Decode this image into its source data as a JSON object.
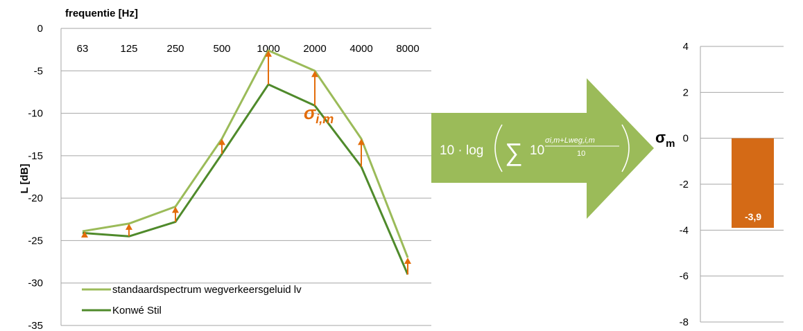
{
  "chart_data": [
    {
      "type": "line",
      "x_title": "frequentie [Hz]",
      "ylabel": "L [dB]",
      "categories": [
        "63",
        "125",
        "250",
        "500",
        "1000",
        "2000",
        "4000",
        "8000"
      ],
      "ylim": [
        -35,
        0
      ],
      "yticks": [
        0,
        -5,
        -10,
        -15,
        -20,
        -25,
        -30,
        -35
      ],
      "ytick_labels": [
        "0",
        "-5",
        "-10",
        "-15",
        "-20",
        "-25",
        "-30",
        "-35"
      ],
      "grid": true,
      "legend_position": "bottom-left",
      "series": [
        {
          "name": "standaardspectrum wegverkeersgeluid lv",
          "color": "#9bbb59",
          "values": [
            -23.9,
            -23.0,
            -21.0,
            -13.0,
            -2.6,
            -5.0,
            -13.0,
            -27.0
          ]
        },
        {
          "name": "Konwé Stil",
          "color": "#4f8a2b",
          "values": [
            -24.1,
            -24.5,
            -22.8,
            -14.8,
            -6.6,
            -9.1,
            -16.3,
            -29.0
          ]
        }
      ],
      "deviation_arrows": {
        "color": "#e36c0a",
        "label": "σ",
        "label_subscript": "i,m",
        "deltas": [
          0.2,
          1.5,
          1.8,
          1.8,
          4.0,
          4.1,
          3.3,
          2.0
        ]
      }
    },
    {
      "type": "bar",
      "ylabel": "σ",
      "ylabel_subscript": "m",
      "categories": [
        ""
      ],
      "values": [
        -3.9
      ],
      "value_labels": [
        "-3,9"
      ],
      "color": "#d46a16",
      "ylim": [
        -8,
        4
      ],
      "yticks": [
        4,
        2,
        0,
        -2,
        -4,
        -6,
        -8
      ],
      "ytick_labels": [
        "4",
        "2",
        "0",
        "-2",
        "-4",
        "-6",
        "-8"
      ],
      "grid": true
    }
  ],
  "arrow": {
    "color": "#9bbb59",
    "formula": {
      "prefix": "10 · log",
      "sum": "∑",
      "base": "10",
      "exp_numerator": "σi,m+Lweg,i,m",
      "exp_denominator": "10"
    }
  }
}
